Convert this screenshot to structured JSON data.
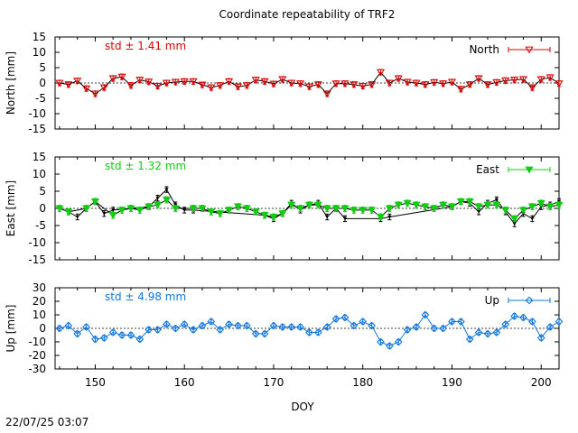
{
  "title": "Coordinate repeatability of TRF2",
  "timestamp": "22/07/25 03:07",
  "xlabel": "DOY",
  "chart_data": [
    {
      "type": "line",
      "ylabel": "North [mm]",
      "ylim": [
        -15,
        15
      ],
      "yticks": [
        -15,
        -10,
        -5,
        0,
        5,
        10,
        15
      ],
      "xlim": [
        145.5,
        202
      ],
      "std_label": "std ± 1.41 mm",
      "legend": "North",
      "legend_position": "top-right",
      "color": "#dd0000",
      "marker": "open-triangle-down",
      "gap_color": "#000000",
      "x": [
        146,
        147,
        148,
        149,
        150,
        151,
        152,
        153,
        154,
        155,
        156,
        157,
        158,
        159,
        160,
        161,
        162,
        163,
        164,
        165,
        166,
        167,
        168,
        169,
        170,
        171,
        172,
        173,
        174,
        175,
        176,
        177,
        178,
        179,
        180,
        181,
        182,
        183,
        184,
        185,
        186,
        187,
        188,
        189,
        190,
        191,
        192,
        193,
        194,
        195,
        196,
        197,
        198,
        199,
        200,
        201,
        202
      ],
      "y": [
        0,
        -0.5,
        0.7,
        -1.8,
        -3.5,
        -1.5,
        1.5,
        2,
        -0.8,
        1,
        0.4,
        -1,
        0,
        0.3,
        0.5,
        0.5,
        -0.6,
        -1.5,
        -0.8,
        0.5,
        -1.2,
        -0.8,
        1,
        0.5,
        -0.3,
        1.2,
        0,
        -0.2,
        -1.2,
        -0.5,
        -3.5,
        -0.2,
        -0.2,
        -0.5,
        -1,
        -0.5,
        3.5,
        0,
        1.5,
        0.3,
        0,
        -0.5,
        0.2,
        -0.2,
        0.3,
        -2,
        -0.5,
        1.5,
        -0.5,
        0.2,
        0.8,
        1,
        1.2,
        -1.5,
        1.2,
        1.8,
        -0.2
      ],
      "gap_x": [],
      "gap_y": []
    },
    {
      "type": "line",
      "ylabel": "East [mm]",
      "ylim": [
        -15,
        15
      ],
      "yticks": [
        -15,
        -10,
        -5,
        0,
        5,
        10,
        15
      ],
      "xlim": [
        145.5,
        202
      ],
      "std_label": "std ± 1.32 mm",
      "legend": "East",
      "legend_position": "top-right",
      "color": "#11cc11",
      "marker": "filled-triangle-down",
      "gap_color": "#000000",
      "x": [
        146,
        147,
        149,
        150,
        152,
        153,
        154,
        155,
        156,
        157,
        158,
        159,
        161,
        162,
        163,
        164,
        165,
        166,
        167,
        168,
        169,
        170,
        171,
        172,
        173,
        174,
        175,
        176,
        177,
        178,
        179,
        180,
        181,
        182,
        183,
        184,
        185,
        186,
        187,
        188,
        189,
        190,
        191,
        192,
        193,
        194,
        195,
        196,
        197,
        198,
        199,
        200,
        201,
        202
      ],
      "y": [
        0,
        -1,
        0,
        2,
        -2,
        -0.5,
        0,
        -0.5,
        0.5,
        1,
        2.5,
        0,
        0,
        0,
        -1,
        -1.5,
        -0.5,
        0.5,
        0,
        -1,
        -2,
        -2.5,
        -1.5,
        1,
        0,
        1,
        1,
        0,
        0,
        0,
        -0.5,
        -0.5,
        -0.5,
        -2.5,
        0,
        1,
        1.5,
        1,
        0.5,
        0,
        1,
        0.5,
        2,
        2,
        0.5,
        1,
        1,
        -0.5,
        -3,
        -0.5,
        0.5,
        1.5,
        0.5,
        1
      ],
      "gap_x": [
        147,
        148,
        149,
        150,
        151,
        152,
        156,
        157,
        158,
        159,
        160,
        161,
        169,
        170,
        171,
        172,
        173,
        174,
        175,
        176,
        177,
        178,
        182,
        183,
        190,
        191,
        192,
        193,
        194,
        195,
        196,
        197,
        198,
        199,
        200,
        201,
        202
      ],
      "gap_y": [
        -1,
        -2.5,
        0,
        2,
        -1.5,
        -0.5,
        0.5,
        3,
        5.5,
        1,
        -0.5,
        -0.5,
        -2,
        -3,
        -1.5,
        1.5,
        -0.5,
        1,
        1.5,
        -2.5,
        0,
        -3,
        -3,
        -2.5,
        0.5,
        2,
        1.5,
        -1,
        1.5,
        2.5,
        -1,
        -4.5,
        -1.5,
        -3,
        0.5,
        1,
        2
      ]
    },
    {
      "type": "line",
      "ylabel": "Up [mm]",
      "ylim": [
        -30,
        30
      ],
      "yticks": [
        -30,
        -20,
        -10,
        0,
        10,
        20,
        30
      ],
      "xlim": [
        145.5,
        202
      ],
      "std_label": "std ± 4.98 mm",
      "legend": "Up",
      "legend_position": "top-right",
      "color": "#1177dd",
      "marker": "open-diamond",
      "gap_color": "#000000",
      "x": [
        146,
        147,
        148,
        149,
        150,
        151,
        152,
        153,
        154,
        155,
        156,
        157,
        158,
        159,
        160,
        161,
        162,
        163,
        164,
        165,
        166,
        167,
        168,
        169,
        170,
        171,
        172,
        173,
        174,
        175,
        176,
        177,
        178,
        179,
        180,
        181,
        182,
        183,
        184,
        185,
        186,
        187,
        188,
        189,
        190,
        191,
        192,
        193,
        194,
        195,
        196,
        197,
        198,
        199,
        200,
        201,
        202
      ],
      "y": [
        0,
        2,
        -4,
        1,
        -8,
        -7,
        -3,
        -5,
        -5,
        -8,
        -1,
        -1,
        3,
        0,
        3,
        -1,
        2,
        5,
        -1,
        3,
        2,
        2,
        -4,
        -4,
        2,
        1,
        1,
        1,
        -3,
        -3,
        1,
        7,
        8,
        2,
        5,
        2,
        -10,
        -13,
        -10,
        -1,
        1,
        10,
        0,
        0,
        5,
        5,
        -8,
        -3,
        -4,
        -3,
        3,
        9,
        8,
        5,
        -7,
        1,
        5
      ],
      "gap_x": [],
      "gap_y": []
    }
  ]
}
